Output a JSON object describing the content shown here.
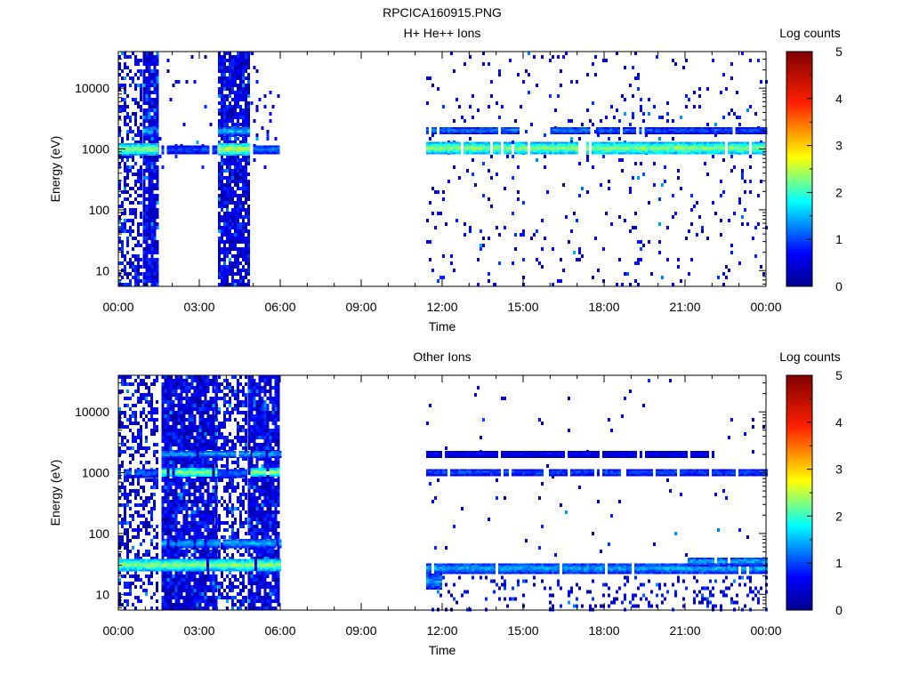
{
  "figure_title": "RPCICA160915.PNG",
  "chart_data": [
    {
      "type": "heatmap",
      "title": "H+ He++ Ions",
      "xlabel": "Time",
      "ylabel": "Energy (eV)",
      "y_scale": "log",
      "ylim": [
        5.5,
        40000
      ],
      "y_ticks": [
        10,
        100,
        1000,
        10000
      ],
      "y_tick_labels": [
        "10",
        "100",
        "1000",
        "10000"
      ],
      "x_range_hours": [
        0,
        24
      ],
      "x_ticks_hours": [
        0,
        3,
        6,
        9,
        12,
        15,
        18,
        21,
        24
      ],
      "x_tick_labels": [
        "00:00",
        "03:00",
        "06:00",
        "09:00",
        "12:00",
        "15:00",
        "18:00",
        "21:00",
        "00:00"
      ],
      "colorbar": {
        "label": "Log counts",
        "range": [
          0,
          5
        ],
        "ticks": [
          "0",
          "1",
          "2",
          "3",
          "4",
          "5"
        ]
      },
      "data_gaps_hours": [
        [
          6.0,
          11.4
        ]
      ],
      "bands": [
        {
          "t_start": 0.0,
          "t_end": 1.5,
          "e_low": 800,
          "e_high": 1250,
          "level": 2.4
        },
        {
          "t_start": 0.9,
          "t_end": 1.5,
          "e_low": 1700,
          "e_high": 2300,
          "level": 1.6
        },
        {
          "t_start": 1.6,
          "t_end": 3.6,
          "e_low": 850,
          "e_high": 1150,
          "level": 1.1
        },
        {
          "t_start": 3.7,
          "t_end": 4.9,
          "e_low": 800,
          "e_high": 1250,
          "level": 2.6
        },
        {
          "t_start": 3.7,
          "t_end": 4.9,
          "e_low": 1700,
          "e_high": 2300,
          "level": 1.6
        },
        {
          "t_start": 5.0,
          "t_end": 6.0,
          "e_low": 850,
          "e_high": 1150,
          "level": 1.3
        },
        {
          "t_start": 11.4,
          "t_end": 24.0,
          "e_low": 800,
          "e_high": 1300,
          "level": 2.4
        },
        {
          "t_start": 11.4,
          "t_end": 14.8,
          "e_low": 1800,
          "e_high": 2300,
          "level": 1.3
        },
        {
          "t_start": 16.0,
          "t_end": 17.5,
          "e_low": 1800,
          "e_high": 2300,
          "level": 1.3
        },
        {
          "t_start": 17.7,
          "t_end": 19.2,
          "e_low": 1800,
          "e_high": 2300,
          "level": 1.2
        },
        {
          "t_start": 19.3,
          "t_end": 24.0,
          "e_low": 1800,
          "e_high": 2300,
          "level": 1.1
        }
      ],
      "scatter_regions": [
        {
          "t_start": 0.0,
          "t_end": 0.9,
          "e_low": 5.5,
          "e_high": 40000,
          "density": 0.45
        },
        {
          "t_start": 0.9,
          "t_end": 1.5,
          "e_low": 5.5,
          "e_high": 40000,
          "density": 0.85
        },
        {
          "t_start": 1.5,
          "t_end": 3.6,
          "e_low": 500,
          "e_high": 40000,
          "density": 0.04
        },
        {
          "t_start": 3.7,
          "t_end": 4.9,
          "e_low": 5.5,
          "e_high": 40000,
          "density": 0.85
        },
        {
          "t_start": 4.9,
          "t_end": 6.0,
          "e_low": 500,
          "e_high": 40000,
          "density": 0.05
        },
        {
          "t_start": 11.4,
          "t_end": 24.0,
          "e_low": 5.5,
          "e_high": 40000,
          "density": 0.05
        }
      ]
    },
    {
      "type": "heatmap",
      "title": "Other Ions",
      "xlabel": "Time",
      "ylabel": "Energy (eV)",
      "y_scale": "log",
      "ylim": [
        5.5,
        40000
      ],
      "y_ticks": [
        10,
        100,
        1000,
        10000
      ],
      "y_tick_labels": [
        "10",
        "100",
        "1000",
        "10000"
      ],
      "x_range_hours": [
        0,
        24
      ],
      "x_ticks_hours": [
        0,
        3,
        6,
        9,
        12,
        15,
        18,
        21,
        24
      ],
      "x_tick_labels": [
        "00:00",
        "03:00",
        "06:00",
        "09:00",
        "12:00",
        "15:00",
        "18:00",
        "21:00",
        "00:00"
      ],
      "colorbar": {
        "label": "Log counts",
        "range": [
          0,
          5
        ],
        "ticks": [
          "0",
          "1",
          "2",
          "3",
          "4",
          "5"
        ]
      },
      "data_gaps_hours": [
        [
          6.0,
          11.4
        ]
      ],
      "bands": [
        {
          "t_start": 0.0,
          "t_end": 1.5,
          "e_low": 850,
          "e_high": 1150,
          "level": 1.2
        },
        {
          "t_start": 1.6,
          "t_end": 3.6,
          "e_low": 850,
          "e_high": 1200,
          "level": 2.4
        },
        {
          "t_start": 3.7,
          "t_end": 4.8,
          "e_low": 850,
          "e_high": 1150,
          "level": 1.2
        },
        {
          "t_start": 4.9,
          "t_end": 6.0,
          "e_low": 850,
          "e_high": 1200,
          "level": 2.4
        },
        {
          "t_start": 1.6,
          "t_end": 6.0,
          "e_low": 1800,
          "e_high": 2300,
          "level": 1.5
        },
        {
          "t_start": 1.6,
          "t_end": 6.0,
          "e_low": 60,
          "e_high": 80,
          "level": 1.6
        },
        {
          "t_start": 0.0,
          "t_end": 6.0,
          "e_low": 24,
          "e_high": 38,
          "level": 2.4
        },
        {
          "t_start": 11.4,
          "t_end": 24.0,
          "e_low": 900,
          "e_high": 1150,
          "level": 1.1
        },
        {
          "t_start": 11.4,
          "t_end": 22.0,
          "e_low": 1800,
          "e_high": 2300,
          "level": 0.6
        },
        {
          "t_start": 11.4,
          "t_end": 24.0,
          "e_low": 22,
          "e_high": 32,
          "level": 1.5
        },
        {
          "t_start": 21.0,
          "t_end": 24.0,
          "e_low": 30,
          "e_high": 40,
          "level": 1.5
        },
        {
          "t_start": 11.4,
          "t_end": 12.0,
          "e_low": 12,
          "e_high": 22,
          "level": 1.4
        }
      ],
      "scatter_regions": [
        {
          "t_start": 0.0,
          "t_end": 1.5,
          "e_low": 5.5,
          "e_high": 40000,
          "density": 0.45
        },
        {
          "t_start": 1.6,
          "t_end": 3.6,
          "e_low": 5.5,
          "e_high": 40000,
          "density": 0.9
        },
        {
          "t_start": 3.6,
          "t_end": 4.8,
          "e_low": 5.5,
          "e_high": 40000,
          "density": 0.5
        },
        {
          "t_start": 4.8,
          "t_end": 6.0,
          "e_low": 5.5,
          "e_high": 40000,
          "density": 0.9
        },
        {
          "t_start": 11.4,
          "t_end": 24.0,
          "e_low": 40,
          "e_high": 40000,
          "density": 0.012
        },
        {
          "t_start": 11.4,
          "t_end": 24.0,
          "e_low": 5.5,
          "e_high": 20,
          "density": 0.15
        }
      ]
    }
  ]
}
